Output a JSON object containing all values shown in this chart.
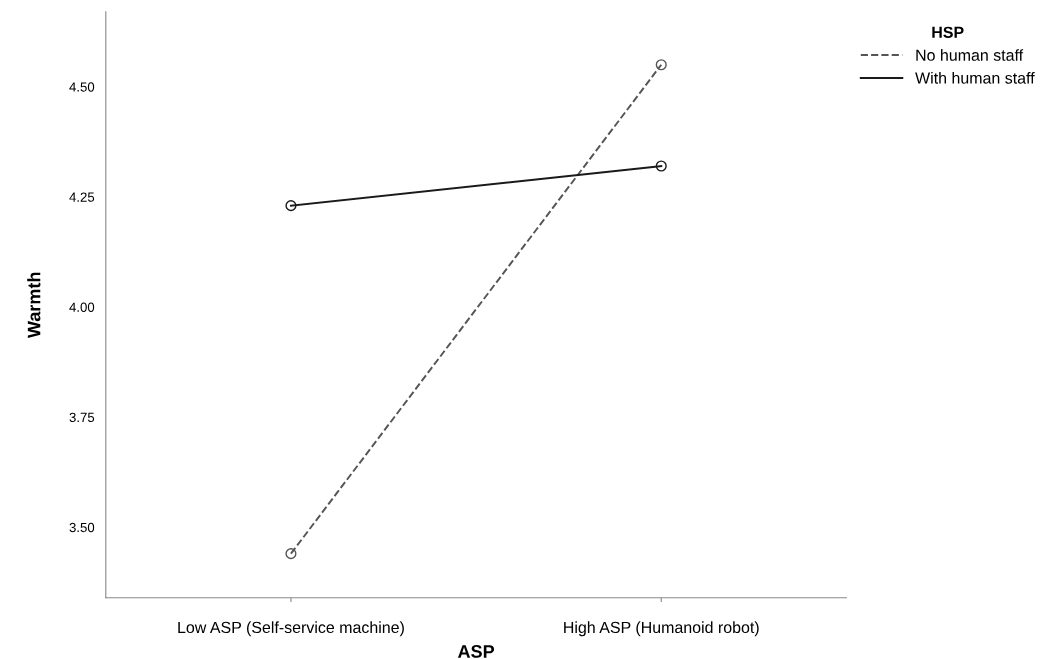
{
  "chart_data": {
    "type": "line",
    "xlabel": "ASP",
    "ylabel": "Warmth",
    "legend_title": "HSP",
    "categories": [
      "Low ASP (Self-service machine)",
      "High ASP (Humanoid robot)"
    ],
    "series": [
      {
        "name": "No human staff",
        "color": "#555555",
        "values": [
          3.44,
          4.55
        ],
        "line_style": "dashed"
      },
      {
        "name": "With human staff",
        "color": "#1a1a1a",
        "values": [
          4.23,
          4.32
        ],
        "line_style": "solid"
      }
    ],
    "ylim": [
      3.34,
      4.67
    ],
    "yticks": [
      {
        "value": 3.5,
        "label": "3.50"
      },
      {
        "value": 3.75,
        "label": "3.75"
      },
      {
        "value": 4.0,
        "label": "4.00"
      },
      {
        "value": 4.25,
        "label": "4.25"
      },
      {
        "value": 4.5,
        "label": "4.50"
      }
    ],
    "marker": "circle",
    "grid": false,
    "legend": "top right"
  }
}
